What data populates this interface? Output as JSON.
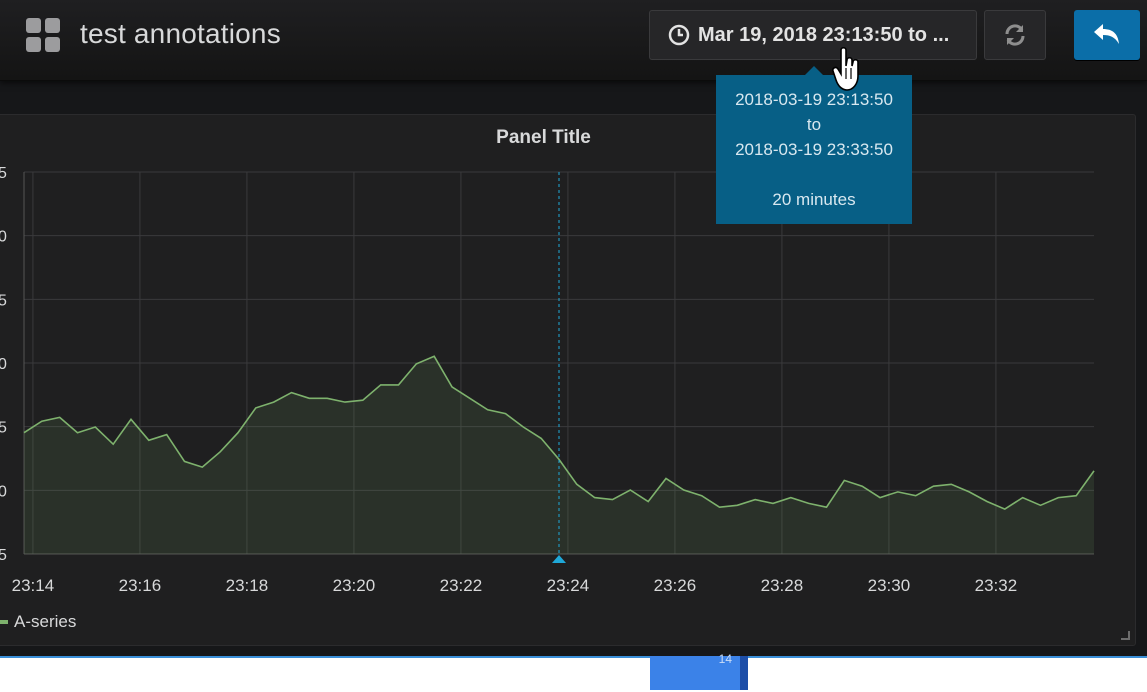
{
  "header": {
    "title": "test annotations",
    "time_range_label": "Mar 19, 2018 23:13:50 to ...",
    "icons": {
      "dashboard": "grid-icon",
      "clock": "clock-icon",
      "refresh": "refresh-icon",
      "back": "back-arrow-icon"
    }
  },
  "tooltip": {
    "from": "2018-03-19 23:13:50",
    "to_word": "to",
    "to": "2018-03-19 23:33:50",
    "duration": "20 minutes"
  },
  "panel": {
    "title": "Panel Title",
    "legend": [
      "A-series"
    ],
    "series_color": "#7eb26d",
    "annotation_color": "#1fa8d8"
  },
  "bottom": {
    "partial_text": "14"
  },
  "chart_data": {
    "type": "area",
    "title": "Panel Title",
    "xlabel": "",
    "ylabel": "",
    "x_ticks": [
      "23:14",
      "23:16",
      "23:18",
      "23:20",
      "23:22",
      "23:24",
      "23:26",
      "23:28",
      "23:30",
      "23:32"
    ],
    "y_tick_fragments": [
      "5",
      "0",
      "5",
      "0",
      "5",
      "0",
      "5"
    ],
    "grid": true,
    "legend": "bottom-left",
    "annotation": {
      "time": "23:23:50"
    },
    "series": [
      {
        "name": "A-series",
        "x": [
          "23:13:50",
          "23:14:10",
          "23:14:30",
          "23:14:50",
          "23:15:10",
          "23:15:30",
          "23:15:50",
          "23:16:10",
          "23:16:30",
          "23:16:50",
          "23:17:10",
          "23:17:30",
          "23:17:50",
          "23:18:10",
          "23:18:30",
          "23:18:50",
          "23:19:10",
          "23:19:30",
          "23:19:50",
          "23:20:10",
          "23:20:30",
          "23:20:50",
          "23:21:10",
          "23:21:30",
          "23:21:50",
          "23:22:10",
          "23:22:30",
          "23:22:50",
          "23:23:10",
          "23:23:30",
          "23:23:50",
          "23:24:10",
          "23:24:30",
          "23:24:50",
          "23:25:10",
          "23:25:30",
          "23:25:50",
          "23:26:10",
          "23:26:30",
          "23:26:50",
          "23:27:10",
          "23:27:30",
          "23:27:50",
          "23:28:10",
          "23:28:30",
          "23:28:50",
          "23:29:10",
          "23:29:30",
          "23:29:50",
          "23:30:10",
          "23:30:30",
          "23:30:50",
          "23:31:10",
          "23:31:30",
          "23:31:50",
          "23:32:10",
          "23:32:30",
          "23:32:50",
          "23:33:10",
          "23:33:30",
          "23:33:50"
        ],
        "rel": [
          0.3,
          0.36,
          0.38,
          0.3,
          0.33,
          0.24,
          0.37,
          0.26,
          0.29,
          0.15,
          0.12,
          0.2,
          0.3,
          0.43,
          0.46,
          0.51,
          0.48,
          0.48,
          0.46,
          0.47,
          0.55,
          0.55,
          0.66,
          0.7,
          0.54,
          0.48,
          0.42,
          0.4,
          0.33,
          0.27,
          0.16,
          0.03,
          -0.04,
          -0.05,
          0.0,
          -0.06,
          0.06,
          0.0,
          -0.03,
          -0.09,
          -0.08,
          -0.05,
          -0.07,
          -0.04,
          -0.07,
          -0.09,
          0.05,
          0.02,
          -0.04,
          -0.01,
          -0.03,
          0.02,
          0.03,
          -0.01,
          -0.06,
          -0.1,
          -0.04,
          -0.08,
          -0.04,
          -0.03,
          0.1
        ]
      }
    ]
  }
}
